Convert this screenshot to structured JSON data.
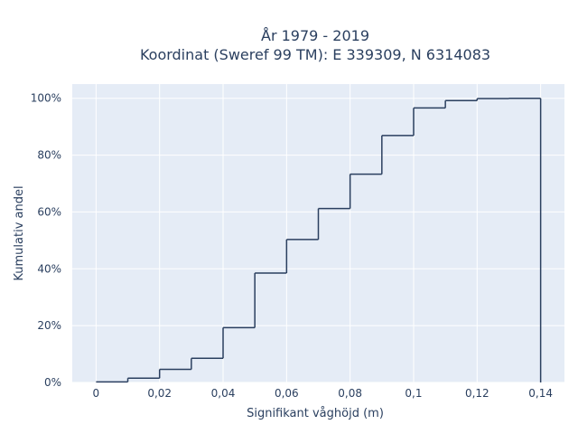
{
  "chart_data": {
    "type": "line",
    "subtype": "cumulative-step-histogram",
    "title_line1": "År 1979 - 2019",
    "title_line2": "Koordinat (Sweref 99 TM): E 339309, N 6314083",
    "xlabel": "Signifikant våghöjd (m)",
    "ylabel": "Kumulativ andel",
    "xlim": [
      -0.0075,
      0.1475
    ],
    "ylim": [
      0,
      1.05
    ],
    "x_ticks": [
      0,
      0.02,
      0.04,
      0.06,
      0.08,
      0.1,
      0.12,
      0.14
    ],
    "x_tick_labels": [
      "0",
      "0,02",
      "0,04",
      "0,06",
      "0,08",
      "0,1",
      "0,12",
      "0,14"
    ],
    "y_ticks": [
      0,
      0.2,
      0.4,
      0.6,
      0.8,
      1.0
    ],
    "y_tick_labels": [
      "0%",
      "20%",
      "40%",
      "60%",
      "80%",
      "100%"
    ],
    "grid": true,
    "legend": "none",
    "bin_edges": [
      0,
      0.01,
      0.02,
      0.03,
      0.04,
      0.05,
      0.06,
      0.07,
      0.08,
      0.09,
      0.1,
      0.11,
      0.12,
      0.13,
      0.14
    ],
    "cumulative_values": [
      0.002,
      0.015,
      0.046,
      0.085,
      0.193,
      0.385,
      0.503,
      0.612,
      0.733,
      0.869,
      0.966,
      0.992,
      0.999,
      1.0
    ],
    "colors": {
      "line": "#2a3f5f",
      "plot_bg": "#e5ecf6",
      "grid": "#ffffff",
      "text": "#2a3f5f"
    }
  }
}
